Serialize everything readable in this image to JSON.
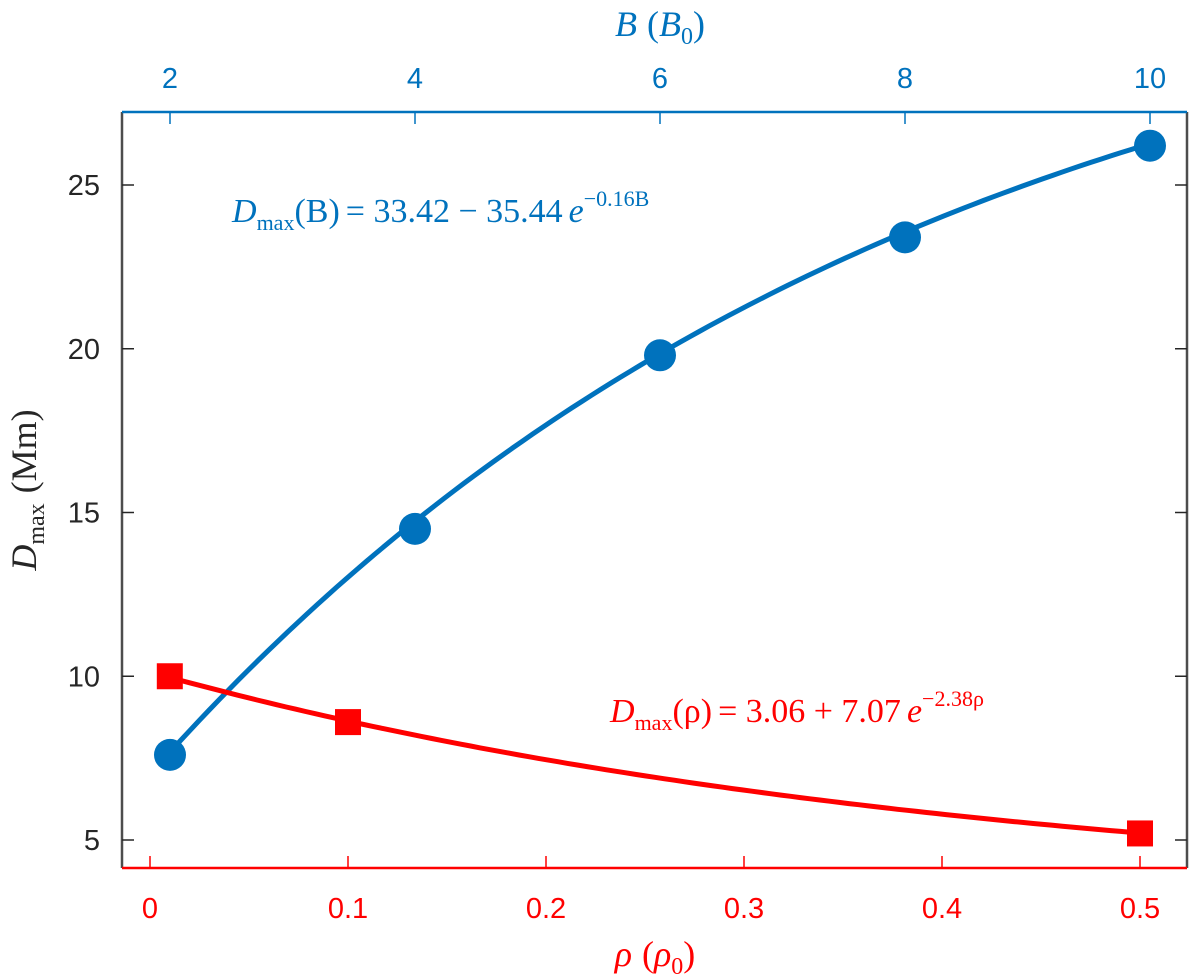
{
  "colors": {
    "blue": "#0072BD",
    "red": "#FF0000",
    "axis_dark": "#262626",
    "axis_left": "#4D4D4D"
  },
  "chart_data": {
    "type": "line",
    "title": "",
    "ylabel": "D_max (Mm)",
    "ylabel_parts": {
      "main": "D",
      "sub": "max",
      "unit": "(Mm)"
    },
    "ylim": [
      4.2,
      27.1
    ],
    "yticks": [
      5,
      10,
      15,
      20,
      25
    ],
    "ytick_labels": [
      "5",
      "10",
      "15",
      "20",
      "25"
    ],
    "grid": false,
    "legend": null,
    "axes": {
      "top": {
        "label": "B (B_0)",
        "label_parts": {
          "var": "B",
          "unit_var": "B",
          "unit_sub": "0"
        },
        "ticks": [
          2,
          4,
          6,
          8,
          10
        ],
        "tick_labels": [
          "2",
          "4",
          "6",
          "8",
          "10"
        ],
        "color": "#0072BD"
      },
      "bottom": {
        "label": "ρ (ρ_0)",
        "label_parts": {
          "var": "ρ",
          "unit_var": "ρ",
          "unit_sub": "0"
        },
        "ticks": [
          0,
          0.1,
          0.2,
          0.3,
          0.4,
          0.5
        ],
        "tick_labels": [
          "0",
          "0.1",
          "0.2",
          "0.3",
          "0.4",
          "0.5"
        ],
        "color": "#FF0000"
      }
    },
    "series": [
      {
        "name": "D_max vs B",
        "axis": "top",
        "marker": "circle",
        "color": "#0072BD",
        "x": [
          2,
          4,
          6,
          8,
          10
        ],
        "values": [
          7.6,
          14.5,
          19.8,
          23.4,
          26.2
        ],
        "fit": {
          "a": 33.42,
          "b": -35.44,
          "k": -0.16,
          "x_range": [
            2,
            10
          ]
        },
        "annotation": {
          "lhs_main": "D",
          "lhs_sub": "max",
          "lhs_arg": "(B)",
          "rhs": "= 33.42 − 35.44",
          "base": "e",
          "exponent": "−0.16B"
        }
      },
      {
        "name": "D_max vs ρ",
        "axis": "bottom",
        "marker": "square",
        "color": "#FF0000",
        "x": [
          0.01,
          0.1,
          0.5
        ],
        "values": [
          10.0,
          8.6,
          5.2
        ],
        "fit": {
          "a": 3.06,
          "b": 7.07,
          "k": -2.38,
          "x_range": [
            0.01,
            0.5
          ]
        },
        "annotation": {
          "lhs_main": "D",
          "lhs_sub": "max",
          "lhs_arg": "(ρ)",
          "rhs": "= 3.06 + 7.07",
          "base": "e",
          "exponent": "−2.38ρ"
        }
      }
    ]
  }
}
